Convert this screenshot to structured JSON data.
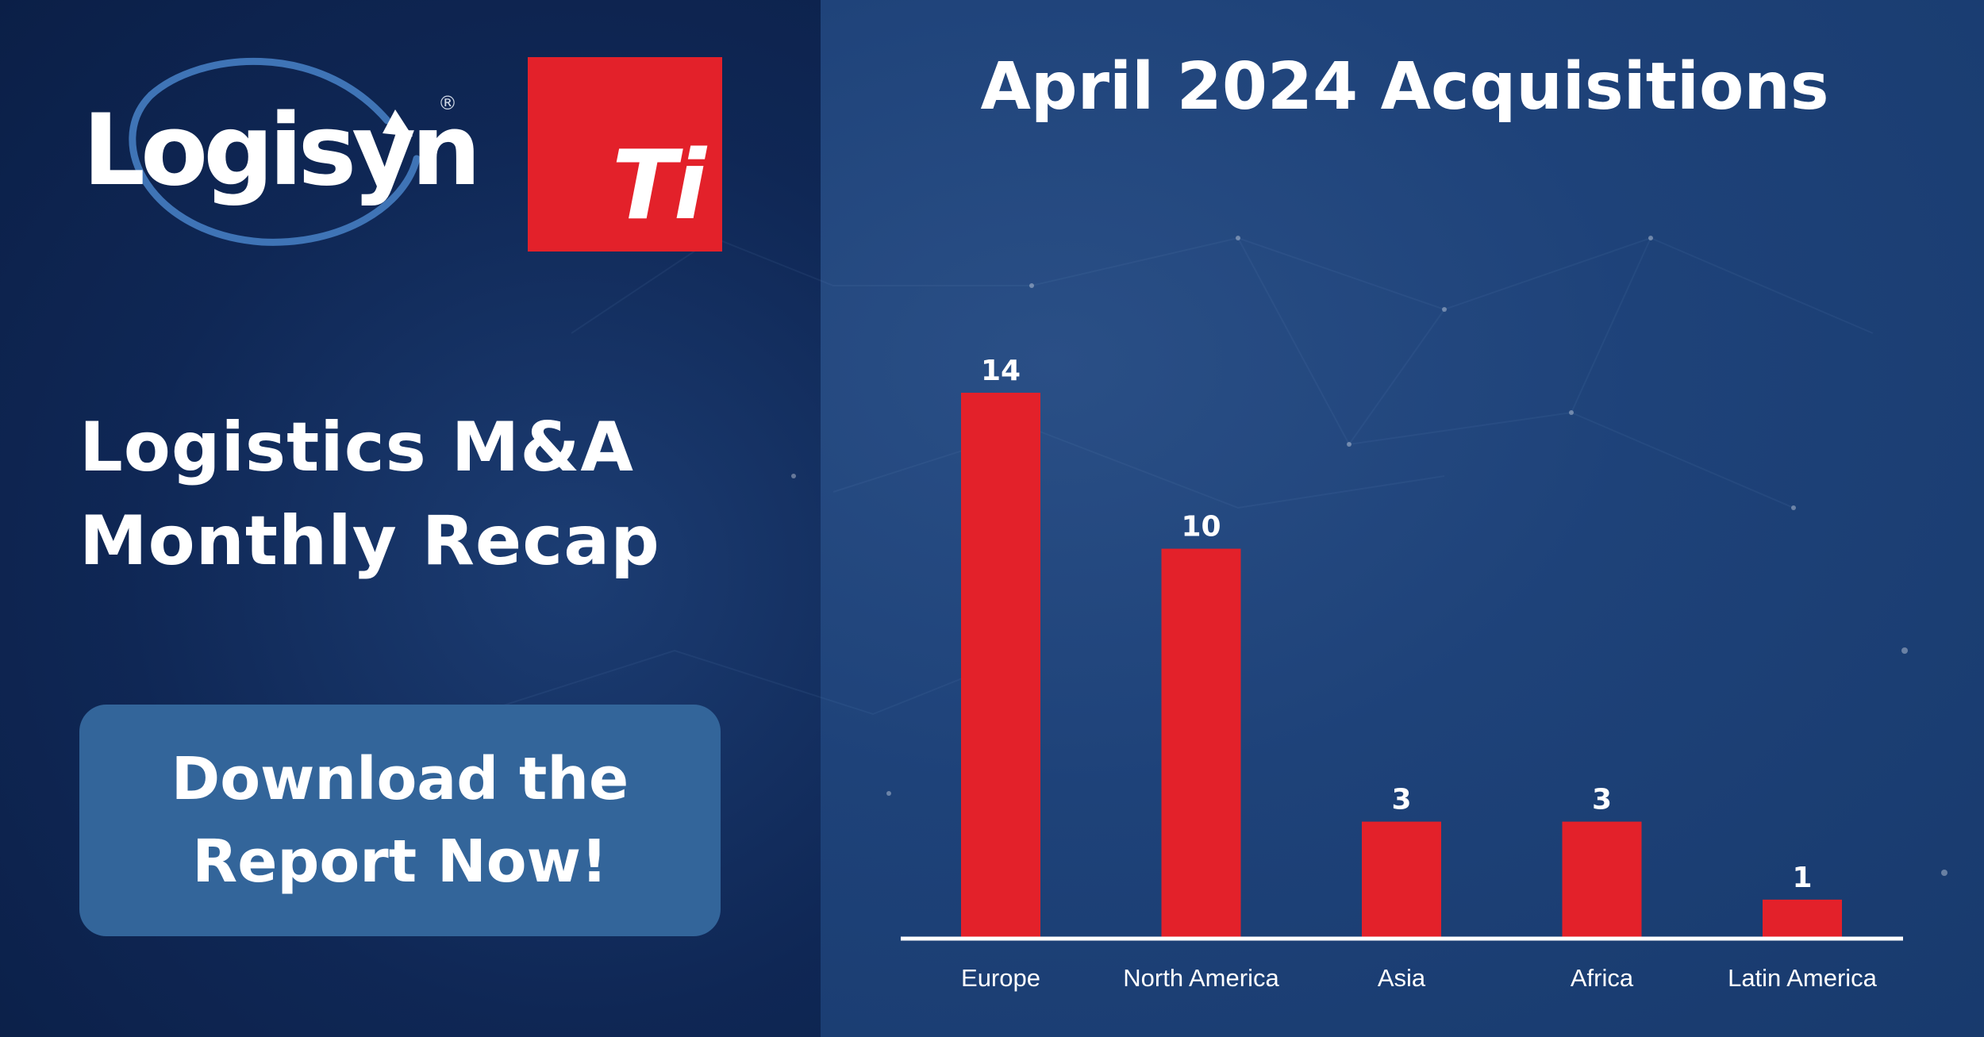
{
  "brand": {
    "logisyn_name": "Logisyn",
    "logisyn_mark": "®",
    "ti_mark": "Ti"
  },
  "headline": {
    "line1": "Logistics M&A",
    "line2": "Monthly Recap"
  },
  "cta": {
    "line1": "Download the",
    "line2": "Report Now!"
  },
  "colors": {
    "left_bg": "#0f2755",
    "right_bg": "#1e4279",
    "accent_red": "#e3212a",
    "cta_blue": "#33659a",
    "text": "#ffffff"
  },
  "chart_data": {
    "type": "bar",
    "title": "April 2024 Acquisitions",
    "categories": [
      "Europe",
      "North America",
      "Asia",
      "Africa",
      "Latin America"
    ],
    "values": [
      14,
      10,
      3,
      3,
      1
    ],
    "data_labels": [
      "14",
      "10",
      "3",
      "3",
      "1"
    ],
    "ylim": [
      0,
      14
    ],
    "grid": false,
    "legend": "none",
    "bar_color": "#e3212a"
  }
}
